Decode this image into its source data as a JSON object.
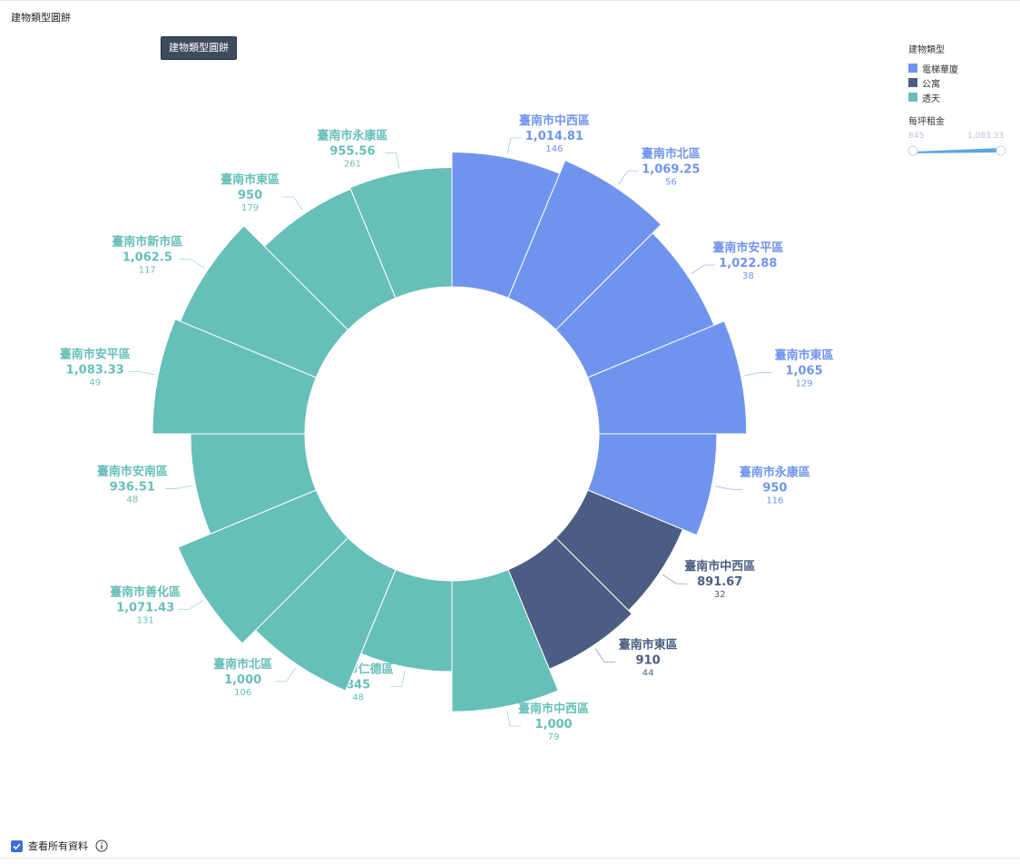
{
  "page_title": "建物類型圓餅",
  "title_button": "建物類型圓餅",
  "legend": {
    "title": "建物類型",
    "items": [
      {
        "label": "電梯華廈",
        "color": "#7094ee"
      },
      {
        "label": "公寓",
        "color": "#4b5d82"
      },
      {
        "label": "透天",
        "color": "#66bfb8"
      }
    ]
  },
  "size_legend": {
    "title": "每坪租金",
    "min": "845",
    "max": "1,083.33"
  },
  "footer": {
    "checkbox_label": "查看所有資料",
    "checked": true
  },
  "chart_data": {
    "type": "pie",
    "variant": "rose-donut",
    "title": "",
    "series": [
      {
        "type": "電梯華廈",
        "name": "臺南市中西區",
        "value": 1014.81,
        "label": "1,014.81",
        "count": "146"
      },
      {
        "type": "電梯華廈",
        "name": "臺南市北區",
        "value": 1069.25,
        "label": "1,069.25",
        "count": "56"
      },
      {
        "type": "電梯華廈",
        "name": "臺南市安平區",
        "value": 1022.88,
        "label": "1,022.88",
        "count": "38"
      },
      {
        "type": "電梯華廈",
        "name": "臺南市東區",
        "value": 1065,
        "label": "1,065",
        "count": "129"
      },
      {
        "type": "電梯華廈",
        "name": "臺南市永康區",
        "value": 950,
        "label": "950",
        "count": "116"
      },
      {
        "type": "公寓",
        "name": "臺南市中西區",
        "value": 891.67,
        "label": "891.67",
        "count": "32"
      },
      {
        "type": "公寓",
        "name": "臺南市東區",
        "value": 910,
        "label": "910",
        "count": "44"
      },
      {
        "type": "透天",
        "name": "臺南市中西區",
        "value": 1000,
        "label": "1,000",
        "count": "79"
      },
      {
        "type": "透天",
        "name": "臺南市仁德區",
        "value": 845,
        "label": "845",
        "count": "48"
      },
      {
        "type": "透天",
        "name": "臺南市北區",
        "value": 1000,
        "label": "1,000",
        "count": "106"
      },
      {
        "type": "透天",
        "name": "臺南市善化區",
        "value": 1071.43,
        "label": "1,071.43",
        "count": "131"
      },
      {
        "type": "透天",
        "name": "臺南市安南區",
        "value": 936.51,
        "label": "936.51",
        "count": "48"
      },
      {
        "type": "透天",
        "name": "臺南市安平區",
        "value": 1083.33,
        "label": "1,083.33",
        "count": "49"
      },
      {
        "type": "透天",
        "name": "臺南市新市區",
        "value": 1062.5,
        "label": "1,062.5",
        "count": "117"
      },
      {
        "type": "透天",
        "name": "臺南市東區",
        "value": 950,
        "label": "950",
        "count": "179"
      },
      {
        "type": "透天",
        "name": "臺南市永康區",
        "value": 955.56,
        "label": "955.56",
        "count": "261"
      }
    ]
  }
}
